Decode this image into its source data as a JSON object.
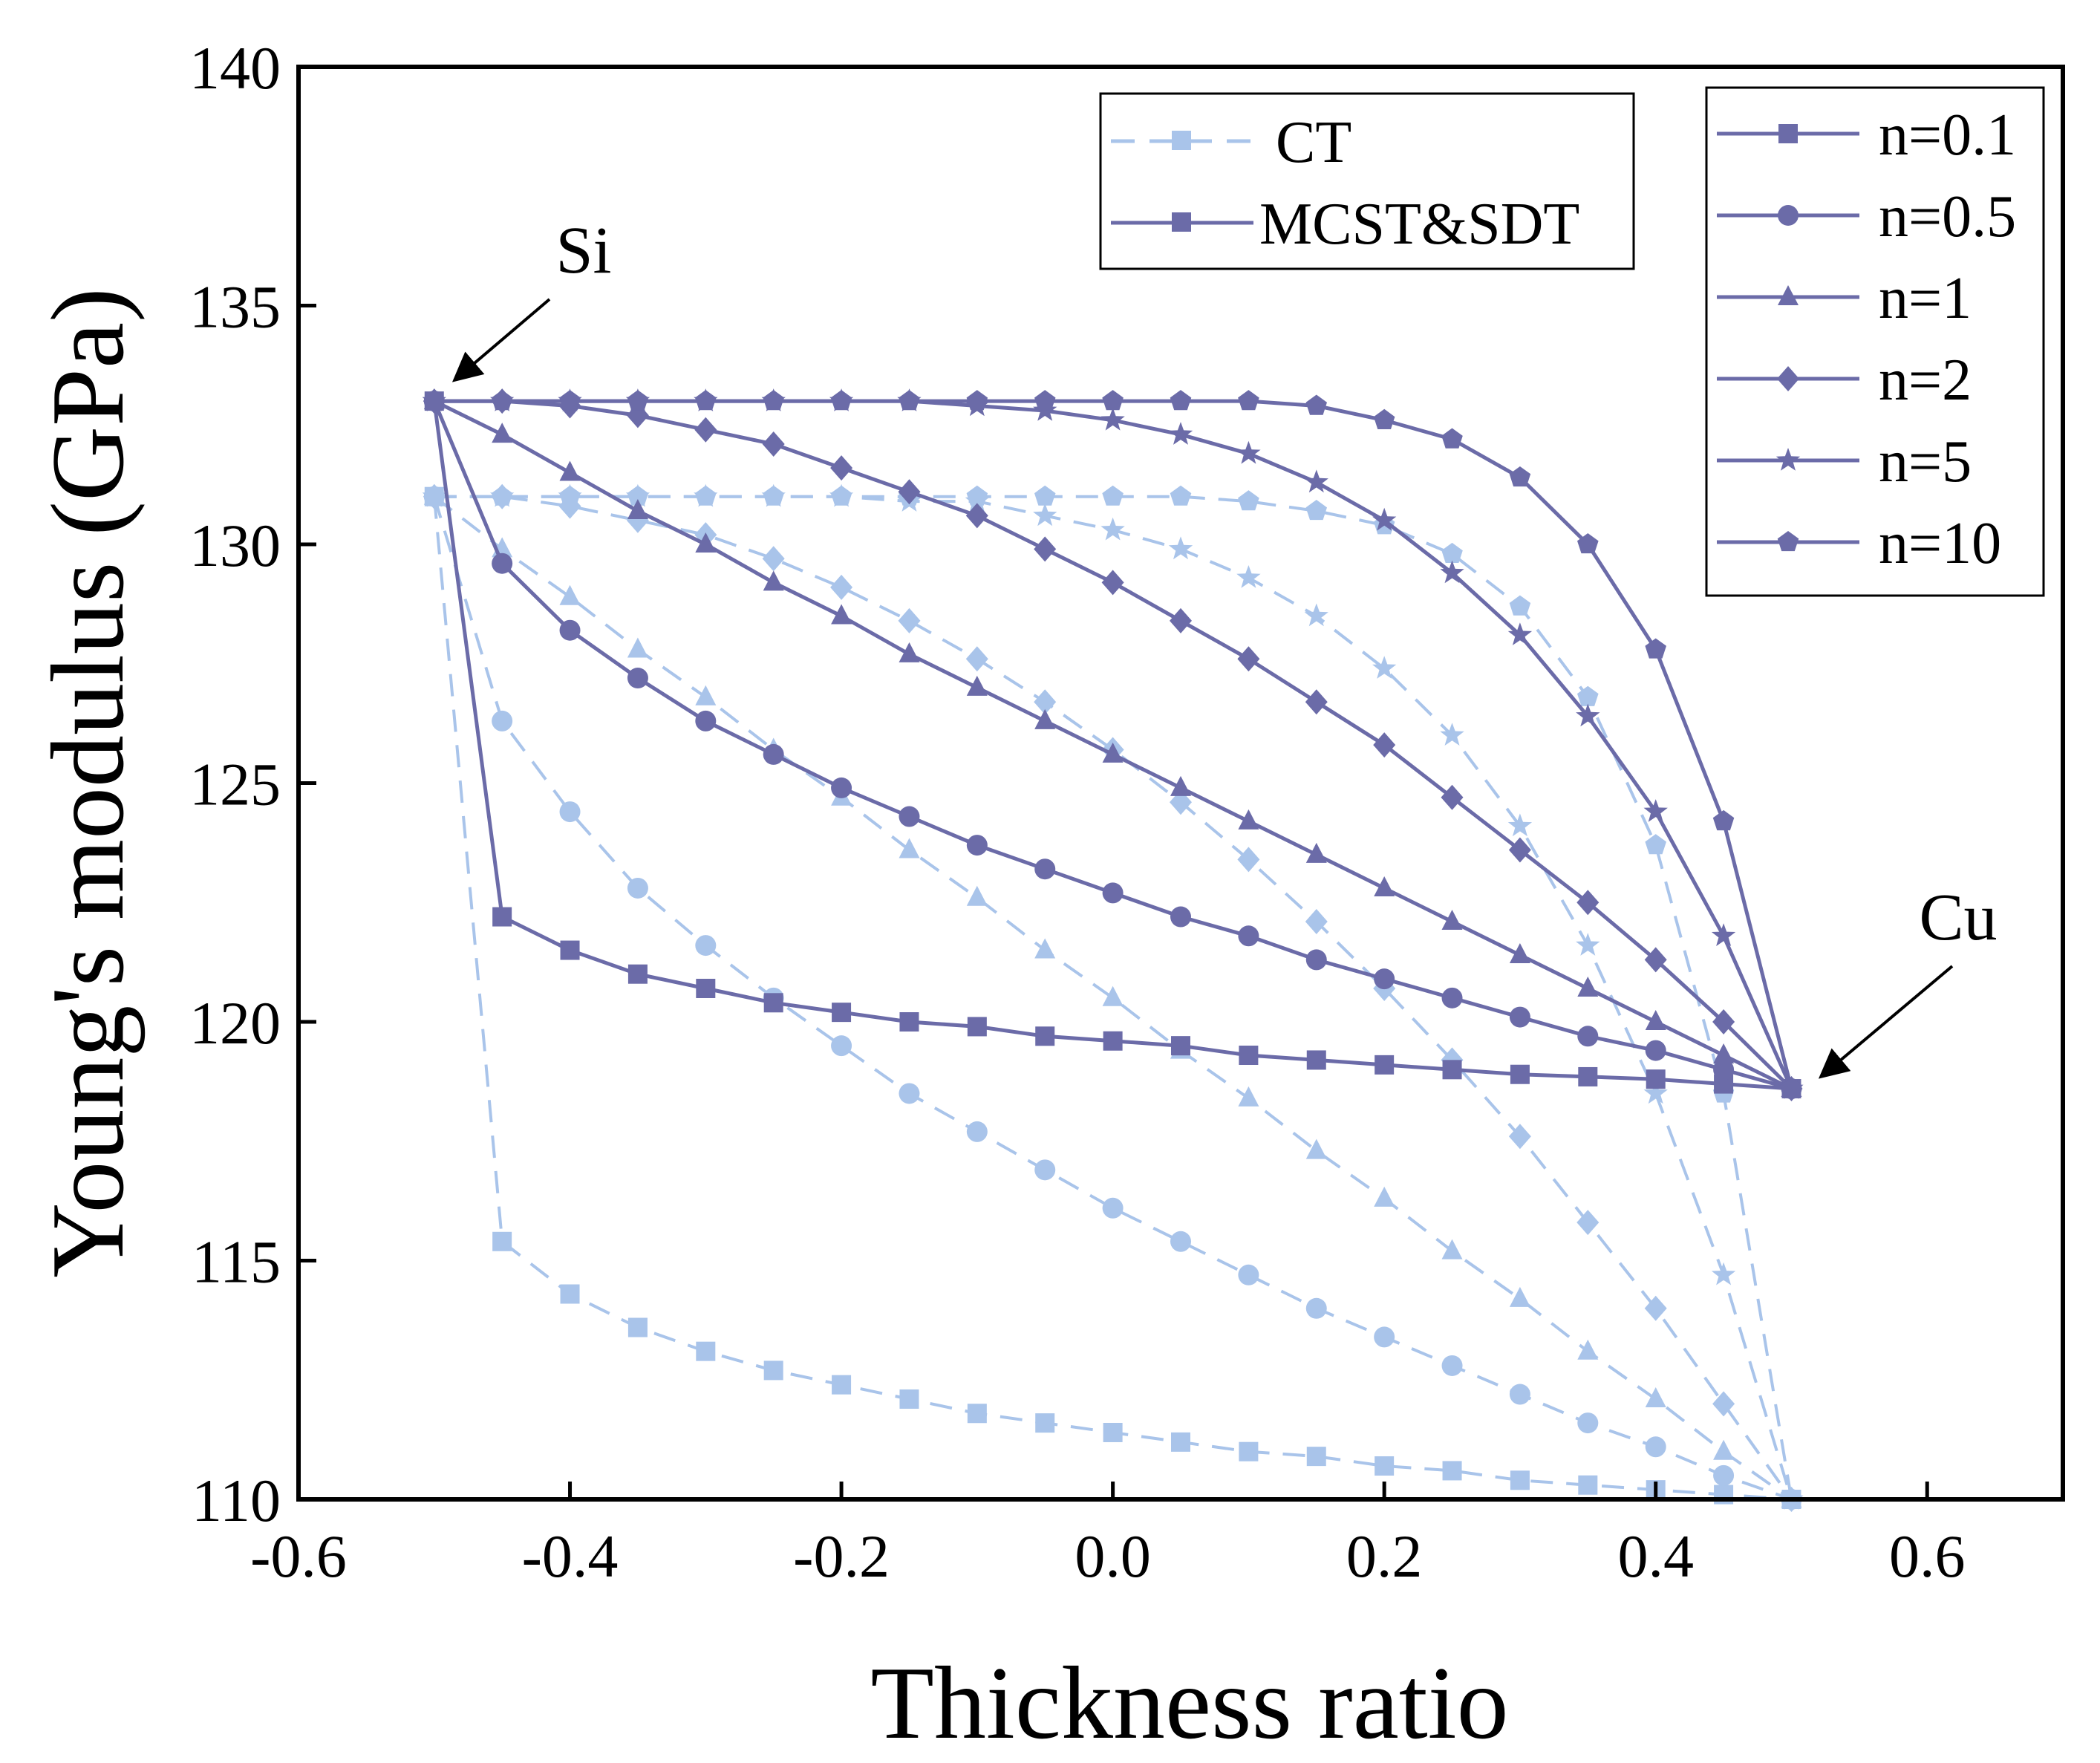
{
  "colors": {
    "mcst": "#6B6BA8",
    "ct": "#A9C4EA",
    "axis": "#000000"
  },
  "chart_data": {
    "type": "line",
    "xlabel": "Thickness ratio",
    "ylabel": "Young's modulus (GPa)",
    "xlim": [
      -0.6,
      0.7
    ],
    "ylim": [
      110,
      140
    ],
    "xticks": [
      -0.6,
      -0.4,
      -0.2,
      0.0,
      0.2,
      0.4,
      0.6
    ],
    "xtick_labels": [
      "-0.6",
      "-0.4",
      "-0.2",
      "0.0",
      "0.2",
      "0.4",
      "0.6"
    ],
    "yticks": [
      110,
      115,
      120,
      125,
      130,
      135,
      140
    ],
    "ytick_labels": [
      "110",
      "115",
      "120",
      "125",
      "130",
      "135",
      "140"
    ],
    "x": [
      -0.5,
      -0.45,
      -0.4,
      -0.35,
      -0.3,
      -0.25,
      -0.2,
      -0.15,
      -0.1,
      -0.05,
      0.0,
      0.05,
      0.1,
      0.15,
      0.2,
      0.25,
      0.3,
      0.35,
      0.4,
      0.45,
      0.5
    ],
    "annotations": [
      {
        "text": "Si",
        "x": -0.5,
        "y": 133.0
      },
      {
        "text": "Cu",
        "x": 0.5,
        "y": 118.6
      }
    ],
    "style_legend": [
      {
        "label": "CT",
        "style": "ct"
      },
      {
        "label": "MCST&SDT",
        "style": "mcst"
      }
    ],
    "marker_legend": [
      {
        "label": "n=0.1",
        "marker": "square"
      },
      {
        "label": "n=0.5",
        "marker": "circle"
      },
      {
        "label": "n=1",
        "marker": "triangle"
      },
      {
        "label": "n=2",
        "marker": "diamond"
      },
      {
        "label": "n=5",
        "marker": "star"
      },
      {
        "label": "n=10",
        "marker": "pentagon"
      }
    ],
    "series": [
      {
        "name": "n=0.1",
        "theory": "MCST&SDT",
        "marker": "square",
        "values": [
          133.0,
          122.2,
          121.5,
          121.0,
          120.7,
          120.4,
          120.2,
          120.0,
          119.9,
          119.7,
          119.6,
          119.5,
          119.3,
          119.2,
          119.1,
          119.0,
          118.9,
          118.85,
          118.8,
          118.7,
          118.6
        ]
      },
      {
        "name": "n=0.5",
        "theory": "MCST&SDT",
        "marker": "circle",
        "values": [
          133.0,
          129.6,
          128.2,
          127.2,
          126.3,
          125.6,
          124.9,
          124.3,
          123.7,
          123.2,
          122.7,
          122.2,
          121.8,
          121.3,
          120.9,
          120.5,
          120.1,
          119.7,
          119.4,
          119.0,
          118.6
        ]
      },
      {
        "name": "n=1",
        "theory": "MCST&SDT",
        "marker": "triangle",
        "values": [
          133.0,
          132.3,
          131.5,
          130.7,
          130.0,
          129.2,
          128.5,
          127.7,
          127.0,
          126.3,
          125.6,
          124.9,
          124.2,
          123.5,
          122.8,
          122.1,
          121.4,
          120.7,
          120.0,
          119.3,
          118.6
        ]
      },
      {
        "name": "n=2",
        "theory": "MCST&SDT",
        "marker": "diamond",
        "values": [
          133.0,
          133.0,
          132.9,
          132.7,
          132.4,
          132.1,
          131.6,
          131.1,
          130.6,
          129.9,
          129.2,
          128.4,
          127.6,
          126.7,
          125.8,
          124.7,
          123.6,
          122.5,
          121.3,
          120.0,
          118.6
        ]
      },
      {
        "name": "n=5",
        "theory": "MCST&SDT",
        "marker": "star",
        "values": [
          133.0,
          133.0,
          133.0,
          133.0,
          133.0,
          133.0,
          133.0,
          133.0,
          132.9,
          132.8,
          132.6,
          132.3,
          131.9,
          131.3,
          130.5,
          129.4,
          128.1,
          126.4,
          124.4,
          121.8,
          118.6
        ]
      },
      {
        "name": "n=10",
        "theory": "MCST&SDT",
        "marker": "pentagon",
        "values": [
          133.0,
          133.0,
          133.0,
          133.0,
          133.0,
          133.0,
          133.0,
          133.0,
          133.0,
          133.0,
          133.0,
          133.0,
          133.0,
          132.9,
          132.6,
          132.2,
          131.4,
          130.0,
          127.8,
          124.2,
          118.6
        ]
      },
      {
        "name": "n=0.1",
        "theory": "CT",
        "marker": "square",
        "values": [
          131.0,
          115.4,
          114.3,
          113.6,
          113.1,
          112.7,
          112.4,
          112.1,
          111.8,
          111.6,
          111.4,
          111.2,
          111.0,
          110.9,
          110.7,
          110.6,
          110.4,
          110.3,
          110.2,
          110.1,
          110.0
        ]
      },
      {
        "name": "n=0.5",
        "theory": "CT",
        "marker": "circle",
        "values": [
          131.0,
          126.3,
          124.4,
          122.8,
          121.6,
          120.5,
          119.5,
          118.5,
          117.7,
          116.9,
          116.1,
          115.4,
          114.7,
          114.0,
          113.4,
          112.8,
          112.2,
          111.6,
          111.1,
          110.5,
          110.0
        ]
      },
      {
        "name": "n=1",
        "theory": "CT",
        "marker": "triangle",
        "values": [
          131.0,
          129.9,
          128.9,
          127.8,
          126.8,
          125.7,
          124.7,
          123.6,
          122.6,
          121.5,
          120.5,
          119.4,
          118.4,
          117.3,
          116.3,
          115.2,
          114.2,
          113.1,
          112.1,
          111.0,
          110.0
        ]
      },
      {
        "name": "n=2",
        "theory": "CT",
        "marker": "diamond",
        "values": [
          131.0,
          131.0,
          130.8,
          130.5,
          130.2,
          129.7,
          129.1,
          128.4,
          127.6,
          126.7,
          125.7,
          124.6,
          123.4,
          122.1,
          120.7,
          119.2,
          117.6,
          115.8,
          114.0,
          112.0,
          110.0
        ]
      },
      {
        "name": "n=5",
        "theory": "CT",
        "marker": "star",
        "values": [
          131.0,
          131.0,
          131.0,
          131.0,
          131.0,
          131.0,
          131.0,
          130.9,
          130.9,
          130.6,
          130.3,
          129.9,
          129.3,
          128.5,
          127.4,
          126.0,
          124.1,
          121.6,
          118.5,
          114.7,
          110.0
        ]
      },
      {
        "name": "n=10",
        "theory": "CT",
        "marker": "pentagon",
        "values": [
          131.0,
          131.0,
          131.0,
          131.0,
          131.0,
          131.0,
          131.0,
          131.0,
          131.0,
          131.0,
          131.0,
          131.0,
          130.9,
          130.7,
          130.4,
          129.8,
          128.7,
          126.8,
          123.7,
          118.5,
          110.0
        ]
      }
    ]
  }
}
